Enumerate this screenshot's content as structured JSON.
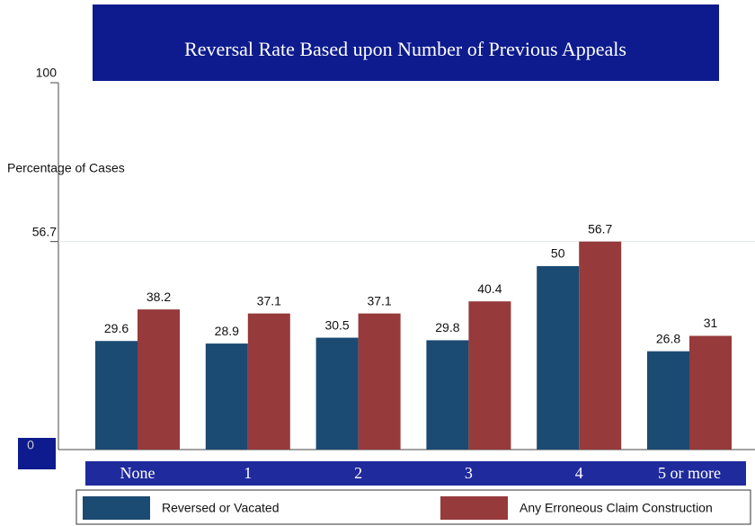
{
  "chart_data": {
    "type": "bar",
    "title": "Reversal Rate Based upon Number of Previous Appeals",
    "y_axis_label": "Percentage of Cases",
    "categories": [
      "None",
      "1",
      "2",
      "3",
      "4",
      "5 or more"
    ],
    "series": [
      {
        "name": "Reversed or Vacated",
        "color": "#1b4a72",
        "values": [
          29.6,
          28.9,
          30.5,
          29.8,
          50,
          26.8
        ]
      },
      {
        "name": "Any Erroneous Claim Construction",
        "color": "#963a3b",
        "values": [
          38.2,
          37.1,
          37.1,
          40.4,
          56.7,
          31
        ]
      }
    ],
    "ylim": [
      0,
      100
    ],
    "yticks": [
      0,
      56.7,
      100
    ],
    "grid": true
  }
}
